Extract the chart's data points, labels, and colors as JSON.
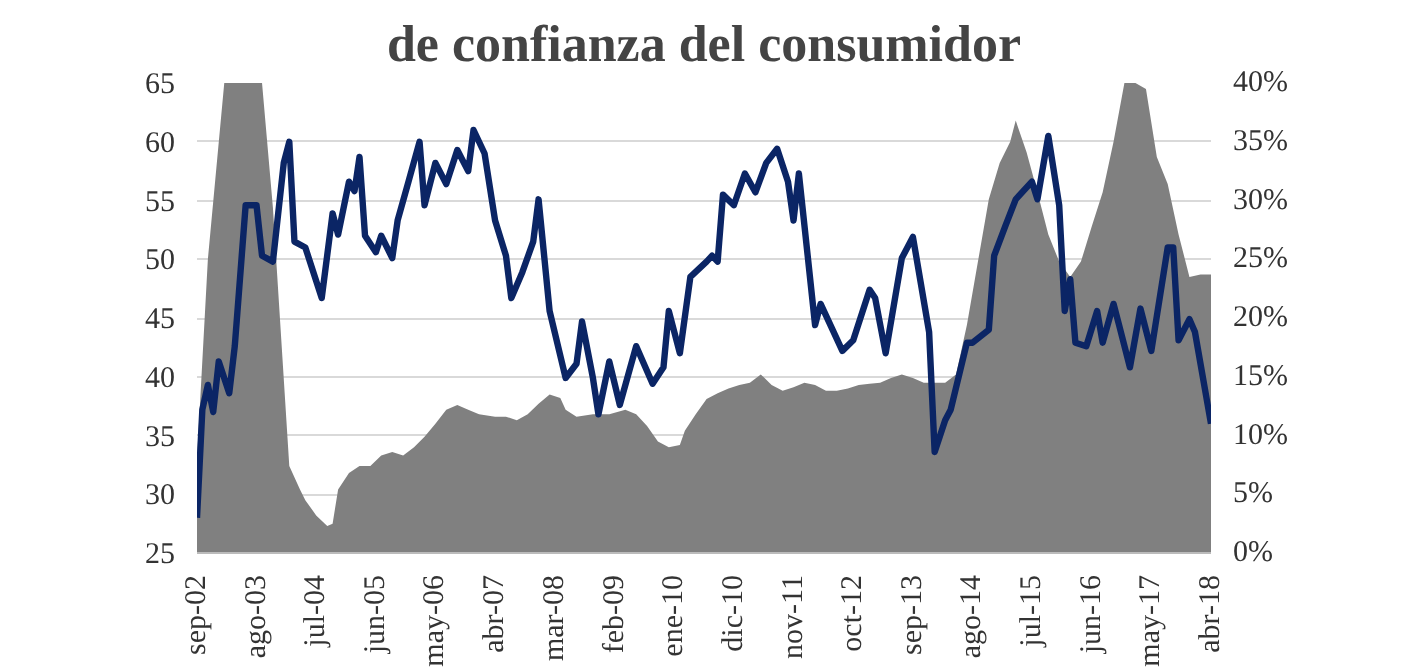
{
  "chart_data": {
    "type": "line",
    "title": "de confianza del consumidor",
    "xlim": [
      "2002-09",
      "2018-04"
    ],
    "xticks": [
      {
        "value": "2002-09",
        "label": "sep-02"
      },
      {
        "value": "2003-08",
        "label": "ago-03"
      },
      {
        "value": "2004-07",
        "label": "jul-04"
      },
      {
        "value": "2005-06",
        "label": "jun-05"
      },
      {
        "value": "2006-05",
        "label": "may-06"
      },
      {
        "value": "2007-04",
        "label": "abr-07"
      },
      {
        "value": "2008-03",
        "label": "mar-08"
      },
      {
        "value": "2009-02",
        "label": "feb-09"
      },
      {
        "value": "2010-01",
        "label": "ene-10"
      },
      {
        "value": "2010-12",
        "label": "dic-10"
      },
      {
        "value": "2011-11",
        "label": "nov-11"
      },
      {
        "value": "2012-10",
        "label": "oct-12"
      },
      {
        "value": "2013-09",
        "label": "sep-13"
      },
      {
        "value": "2014-08",
        "label": "ago-14"
      },
      {
        "value": "2015-07",
        "label": "jul-15"
      },
      {
        "value": "2016-06",
        "label": "jun-16"
      },
      {
        "value": "2017-05",
        "label": "may-17"
      },
      {
        "value": "2018-04",
        "label": "abr-18"
      }
    ],
    "ylim": [
      25,
      65
    ],
    "yticks": [
      25,
      30,
      35,
      40,
      45,
      50,
      55,
      60,
      65
    ],
    "y2lim": [
      0,
      40
    ],
    "y2ticks": [
      {
        "value": 0,
        "label": "0%"
      },
      {
        "value": 5,
        "label": "5%"
      },
      {
        "value": 10,
        "label": "10%"
      },
      {
        "value": 15,
        "label": "15%"
      },
      {
        "value": 20,
        "label": "20%"
      },
      {
        "value": 25,
        "label": "25%"
      },
      {
        "value": 30,
        "label": "30%"
      },
      {
        "value": 35,
        "label": "35%"
      },
      {
        "value": 40,
        "label": "40%"
      }
    ],
    "grid": "y",
    "series": [
      {
        "type": "area",
        "axis": "y2",
        "color": "#808080",
        "x": [
          "2002-09",
          "2002-11",
          "2003-02",
          "2003-09",
          "2003-11",
          "2004-02",
          "2004-04",
          "2004-05",
          "2004-07",
          "2004-09",
          "2004-10",
          "2004-11",
          "2005-01",
          "2005-03",
          "2005-05",
          "2005-07",
          "2005-09",
          "2005-11",
          "2006-01",
          "2006-03",
          "2006-05",
          "2006-07",
          "2006-09",
          "2006-11",
          "2007-01",
          "2007-04",
          "2007-06",
          "2007-08",
          "2007-10",
          "2007-12",
          "2008-02",
          "2008-04",
          "2008-05",
          "2008-07",
          "2008-10",
          "2009-01",
          "2009-04",
          "2009-06",
          "2009-08",
          "2009-10",
          "2009-12",
          "2010-02",
          "2010-03",
          "2010-05",
          "2010-07",
          "2010-09",
          "2010-11",
          "2011-01",
          "2011-03",
          "2011-05",
          "2011-07",
          "2011-09",
          "2011-11",
          "2012-01",
          "2012-03",
          "2012-05",
          "2012-07",
          "2012-09",
          "2012-11",
          "2013-01",
          "2013-03",
          "2013-05",
          "2013-07",
          "2013-09",
          "2013-11",
          "2014-01",
          "2014-03",
          "2014-05",
          "2014-07",
          "2014-09",
          "2014-11",
          "2015-01",
          "2015-03",
          "2015-04",
          "2015-06",
          "2015-08",
          "2015-10",
          "2015-12",
          "2016-02",
          "2016-04",
          "2016-06",
          "2016-08",
          "2016-10",
          "2016-12",
          "2017-02",
          "2017-04",
          "2017-06",
          "2017-08",
          "2017-10",
          "2017-12",
          "2018-02",
          "2018-04"
        ],
        "values": [
          8,
          25,
          40,
          40,
          29.4,
          7.4,
          5.4,
          4.5,
          3.2,
          2.3,
          2.5,
          5.4,
          6.8,
          7.4,
          7.4,
          8.3,
          8.6,
          8.3,
          9,
          9.9,
          11,
          12.2,
          12.6,
          12.2,
          11.8,
          11.6,
          11.6,
          11.3,
          11.8,
          12.7,
          13.5,
          13.2,
          12.2,
          11.6,
          11.8,
          11.8,
          12.2,
          11.8,
          10.8,
          9.5,
          9,
          9.2,
          10.4,
          11.8,
          13.1,
          13.6,
          14,
          14.3,
          14.5,
          15.2,
          14.3,
          13.8,
          14.1,
          14.5,
          14.3,
          13.8,
          13.8,
          14,
          14.3,
          14.4,
          14.5,
          14.9,
          15.2,
          14.9,
          14.5,
          14.5,
          14.5,
          15.2,
          19.4,
          24.8,
          30.1,
          33.2,
          35,
          36.8,
          34.1,
          30.7,
          27.1,
          24.8,
          23.5,
          24.8,
          27.8,
          30.7,
          35,
          40,
          40,
          39.5,
          33.7,
          31.4,
          27.1,
          23.5,
          23.7,
          23.7
        ]
      },
      {
        "color": "#0b2565",
        "x": [
          "2002-09",
          "2002-10",
          "2002-11",
          "2002-12",
          "2003-01",
          "2003-03",
          "2003-04",
          "2003-06",
          "2003-08",
          "2003-09",
          "2003-11",
          "2004-01",
          "2004-02",
          "2004-03",
          "2004-05",
          "2004-08",
          "2004-10",
          "2004-11",
          "2005-01",
          "2005-02",
          "2005-03",
          "2005-04",
          "2005-06",
          "2005-07",
          "2005-09",
          "2005-10",
          "2005-12",
          "2006-02",
          "2006-03",
          "2006-05",
          "2006-07",
          "2006-09",
          "2006-11",
          "2006-12",
          "2007-02",
          "2007-04",
          "2007-06",
          "2007-07",
          "2007-09",
          "2007-11",
          "2007-12",
          "2008-02",
          "2008-05",
          "2008-07",
          "2008-08",
          "2008-10",
          "2008-11",
          "2009-01",
          "2009-03",
          "2009-06",
          "2009-09",
          "2009-11",
          "2009-12",
          "2010-02",
          "2010-04",
          "2010-07",
          "2010-08",
          "2010-09",
          "2010-10",
          "2010-12",
          "2011-02",
          "2011-04",
          "2011-06",
          "2011-08",
          "2011-10",
          "2011-11",
          "2011-12",
          "2012-03",
          "2012-04",
          "2012-08",
          "2012-10",
          "2013-01",
          "2013-02",
          "2013-04",
          "2013-07",
          "2013-09",
          "2013-12",
          "2014-01",
          "2014-03",
          "2014-04",
          "2014-07",
          "2014-08",
          "2014-11",
          "2014-12",
          "2015-02",
          "2015-04",
          "2015-07",
          "2015-08",
          "2015-10",
          "2015-12",
          "2016-01",
          "2016-02",
          "2016-03",
          "2016-05",
          "2016-07",
          "2016-08",
          "2016-10",
          "2016-11",
          "2017-01",
          "2017-03",
          "2017-05",
          "2017-08",
          "2017-09",
          "2017-10",
          "2017-12",
          "2018-01",
          "2018-04"
        ],
        "values": [
          28,
          37.2,
          39.3,
          37,
          41.3,
          38.6,
          42.6,
          54.6,
          54.6,
          50.3,
          49.8,
          58.2,
          60,
          51.5,
          51,
          46.7,
          53.9,
          52.1,
          56.6,
          55.8,
          58.7,
          52,
          50.6,
          52,
          50.1,
          53.3,
          56.6,
          60,
          54.6,
          58.2,
          56.4,
          59.3,
          57.5,
          61,
          59,
          53.3,
          50.3,
          46.7,
          48.9,
          51.5,
          55.1,
          45.6,
          39.9,
          41.1,
          44.7,
          39.9,
          36.8,
          41.3,
          37.6,
          42.6,
          39.4,
          40.8,
          45.6,
          42,
          48.5,
          49.8,
          50.3,
          49.8,
          55.5,
          54.6,
          57.3,
          55.7,
          58.2,
          59.4,
          56.6,
          53.3,
          57.3,
          44.4,
          46.2,
          42.2,
          43.1,
          47.4,
          46.7,
          42,
          50.1,
          51.9,
          43.8,
          33.6,
          36.3,
          37.2,
          42.9,
          42.9,
          44,
          50.3,
          52.8,
          55.1,
          56.6,
          55.1,
          60.5,
          54.6,
          45.6,
          48.3,
          42.9,
          42.6,
          45.6,
          42.9,
          46.2,
          44.4,
          40.8,
          45.8,
          42.2,
          51,
          51,
          43.1,
          44.9,
          43.8,
          36
        ]
      }
    ]
  }
}
